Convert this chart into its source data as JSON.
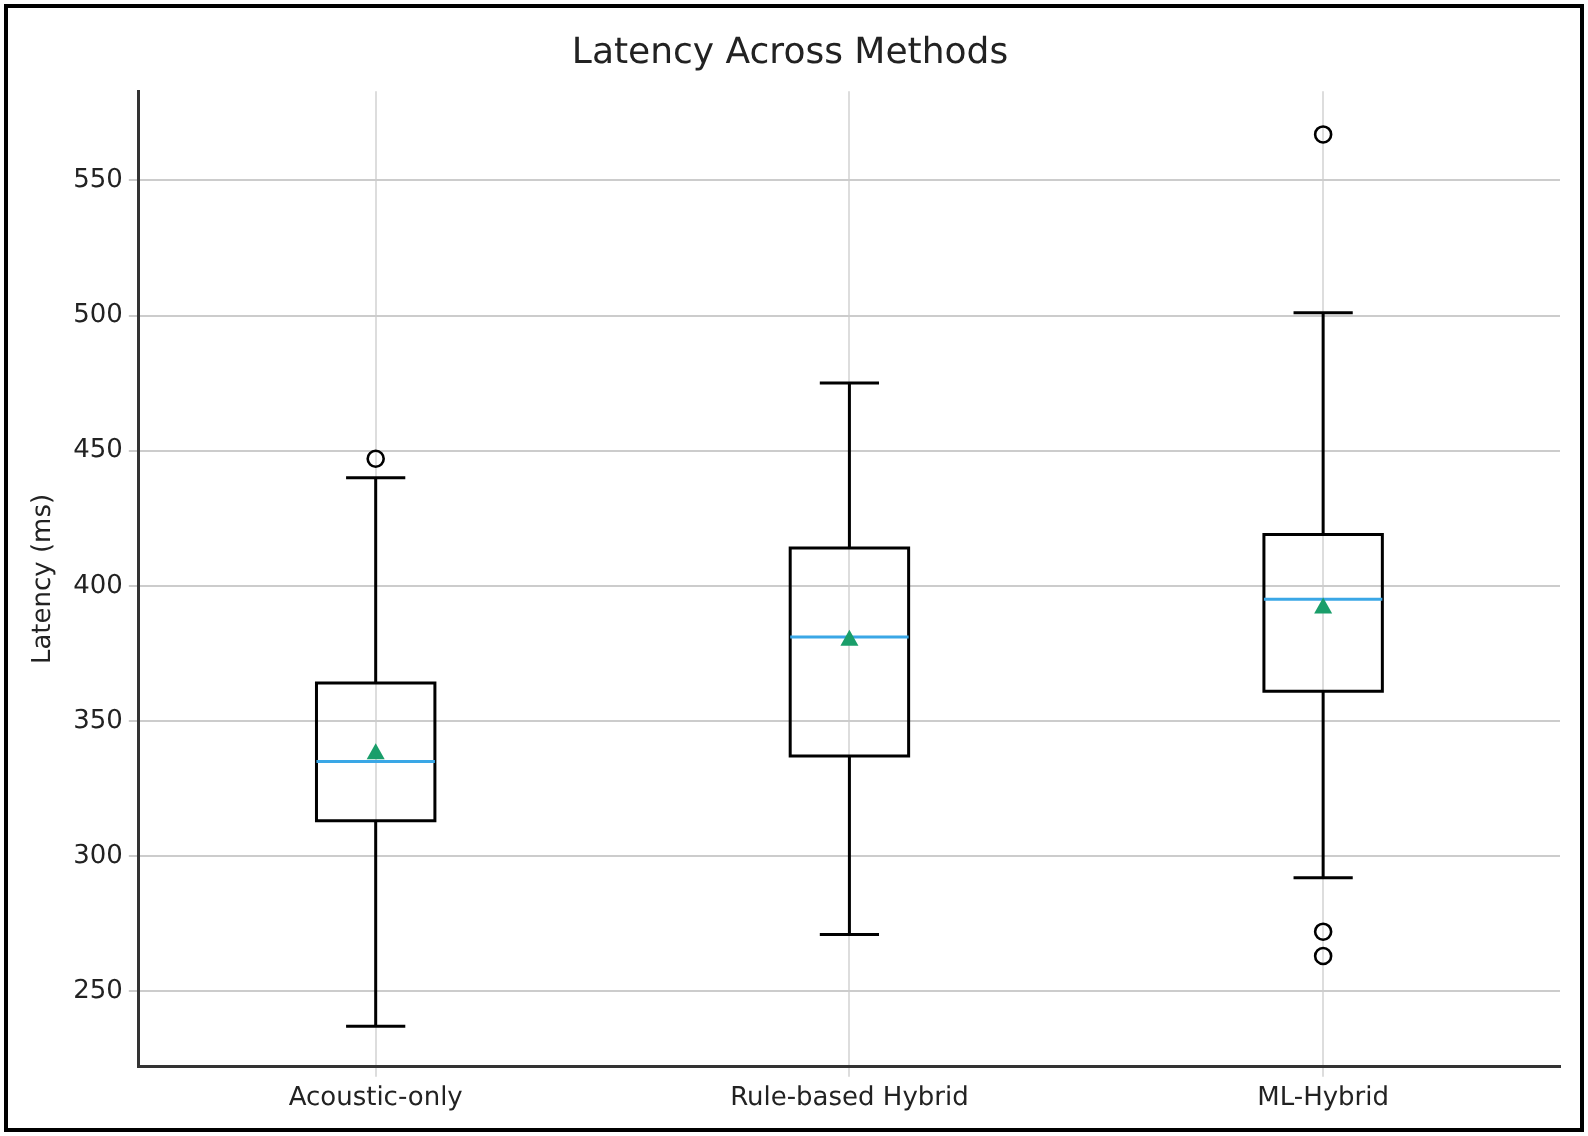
{
  "chart_data": {
    "type": "box",
    "title": "Latency Across Methods",
    "ylabel": "Latency (ms)",
    "categories": [
      "Acoustic-only",
      "Rule-based Hybrid",
      "ML-Hybrid"
    ],
    "boxes": [
      {
        "low": 237,
        "q1": 313,
        "median": 335,
        "q3": 364,
        "high": 440,
        "mean": 338,
        "outliers": [
          447
        ]
      },
      {
        "low": 271,
        "q1": 337,
        "median": 381,
        "q3": 414,
        "high": 475,
        "mean": 380
      },
      {
        "low": 292,
        "q1": 361,
        "median": 395,
        "q3": 419,
        "high": 501,
        "mean": 392,
        "outliers": [
          272,
          263,
          567
        ]
      }
    ],
    "ylim": [
      222,
      583
    ],
    "yticks": [
      250,
      300,
      350,
      400,
      450,
      500,
      550
    ],
    "grid": true,
    "legend": false
  }
}
